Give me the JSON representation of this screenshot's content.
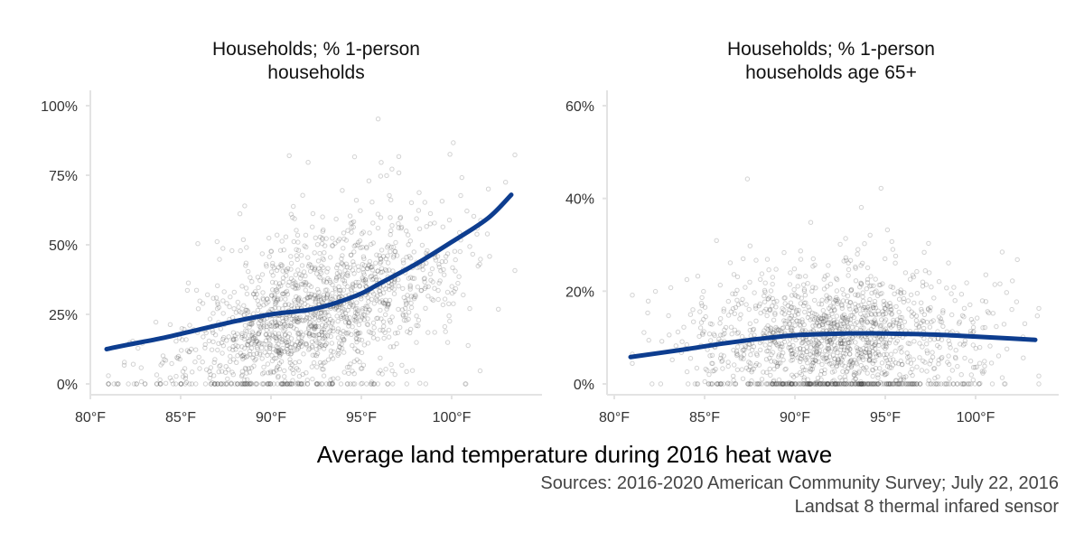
{
  "chart_data": [
    {
      "type": "scatter",
      "title_lines": [
        "Households; % 1-person",
        "households"
      ],
      "xlim": [
        80,
        104
      ],
      "ylim": [
        0,
        100
      ],
      "x_ticks": [
        80,
        85,
        90,
        95,
        100
      ],
      "x_tick_labels": [
        "80°F",
        "85°F",
        "90°F",
        "95°F",
        "100°F"
      ],
      "y_ticks": [
        0,
        25,
        50,
        75,
        100
      ],
      "y_tick_labels": [
        "0%",
        "25%",
        "50%",
        "75%",
        "100%"
      ],
      "point_color": "#333333",
      "smooth_color": "#0d3d8f",
      "smooth": {
        "x": [
          80.9,
          82,
          84,
          86,
          88,
          90,
          92,
          93,
          94,
          95,
          96,
          98,
          100,
          102,
          103.3
        ],
        "y": [
          12.5,
          14,
          16.5,
          19.5,
          22.5,
          25,
          26.5,
          28,
          30,
          32.5,
          36,
          43,
          51,
          59.5,
          68
        ]
      },
      "cloud": {
        "n": 1600,
        "x_mean": 92.5,
        "x_sd": 3.9,
        "x_min": 81,
        "x_max": 103.5,
        "y_base": 25,
        "y_slope": 2.2,
        "y_spread": 14,
        "y_min": 0,
        "y_max": 100,
        "zero_share": 0.03
      }
    },
    {
      "type": "scatter",
      "title_lines": [
        "Households; % 1-person",
        "households age 65+"
      ],
      "xlim": [
        80,
        104
      ],
      "ylim": [
        0,
        67
      ],
      "x_ticks": [
        80,
        85,
        90,
        95,
        100
      ],
      "x_tick_labels": [
        "80°F",
        "85°F",
        "90°F",
        "95°F",
        "100°F"
      ],
      "y_ticks": [
        0,
        20,
        40,
        60
      ],
      "y_tick_labels": [
        "0%",
        "20%",
        "40%",
        "60%"
      ],
      "point_color": "#333333",
      "smooth_color": "#0d3d8f",
      "smooth": {
        "x": [
          80.9,
          84,
          86,
          88,
          90,
          92,
          94,
          96,
          98,
          100,
          102,
          103.3
        ],
        "y": [
          5.8,
          7.5,
          8.7,
          9.7,
          10.5,
          10.8,
          10.9,
          10.8,
          10.6,
          10.2,
          9.8,
          9.5
        ]
      },
      "cloud": {
        "n": 1600,
        "x_mean": 92.5,
        "x_sd": 3.9,
        "x_min": 81,
        "x_max": 103.5,
        "y_base": 10,
        "y_slope": 0,
        "y_spread": 7,
        "y_min": 0,
        "y_max": 66,
        "zero_share": 0.12
      }
    }
  ],
  "x_axis_title": "Average land temperature during 2016 heat wave",
  "caption_lines": [
    "Sources: 2016-2020 American Community Survey; July 22, 2016",
    "Landsat 8 thermal infared sensor"
  ]
}
